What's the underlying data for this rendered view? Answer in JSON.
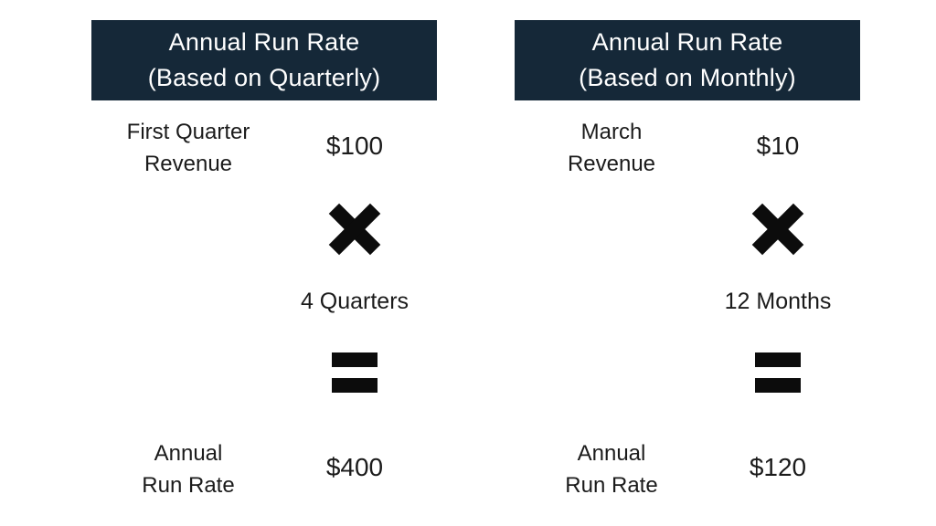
{
  "canvas": {
    "background": "#ffffff",
    "text_color": "#1b1b1b",
    "header_bg": "#152838",
    "header_text_color": "#ffffff",
    "icon_color": "#0c0c0c"
  },
  "columns": [
    {
      "name": "quarterly",
      "header": {
        "line1": "Annual Run Rate",
        "line2": "(Based on Quarterly)"
      },
      "input": {
        "label_line1": "First Quarter",
        "label_line2": "Revenue",
        "value": "$100"
      },
      "multiply_icon": "heavy-multiplication-x",
      "multiplier": "4 Quarters",
      "equals_icon": "heavy-equals-sign",
      "result": {
        "label_line1": "Annual",
        "label_line2": "Run Rate",
        "value": "$400"
      }
    },
    {
      "name": "monthly",
      "header": {
        "line1": "Annual Run Rate",
        "line2": "(Based on Monthly)"
      },
      "input": {
        "label_line1": "March",
        "label_line2": "Revenue",
        "value": "$10"
      },
      "multiply_icon": "heavy-multiplication-x",
      "multiplier": "12 Months",
      "equals_icon": "heavy-equals-sign",
      "result": {
        "label_line1": "Annual",
        "label_line2": "Run Rate",
        "value": "$120"
      }
    }
  ]
}
